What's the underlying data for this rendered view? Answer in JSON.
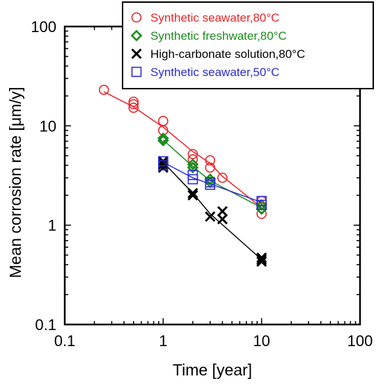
{
  "chart_data": {
    "type": "scatter",
    "xlabel": "Time [year]",
    "ylabel": "Mean corrosion rate [μm/y]",
    "x_scale": "log",
    "y_scale": "log",
    "xlim": [
      0.1,
      100
    ],
    "ylim": [
      0.1,
      100
    ],
    "x_ticks": [
      "0.1",
      "1",
      "10",
      "100"
    ],
    "y_ticks": [
      "0.1",
      "1",
      "10",
      "100"
    ],
    "grid": false,
    "legend_position": "top-right",
    "series": [
      {
        "name": "Synthetic seawater,80°C",
        "color": "#e8262a",
        "marker": "circle",
        "points": [
          [
            0.25,
            23
          ],
          [
            0.5,
            17.5
          ],
          [
            0.5,
            16.5
          ],
          [
            0.5,
            15.2
          ],
          [
            1,
            11.2
          ],
          [
            1,
            9.0
          ],
          [
            2,
            5.2
          ],
          [
            2,
            4.6
          ],
          [
            3,
            4.5
          ],
          [
            3,
            3.8
          ],
          [
            4,
            3.0
          ],
          [
            10,
            1.75
          ],
          [
            10,
            1.5
          ],
          [
            10,
            1.3
          ]
        ],
        "fit": [
          [
            0.25,
            22
          ],
          [
            0.5,
            15.5
          ],
          [
            1,
            9.7
          ],
          [
            2,
            5.5
          ],
          [
            3,
            4.2
          ],
          [
            4,
            3.1
          ],
          [
            10,
            1.5
          ]
        ]
      },
      {
        "name": "Synthetic freshwater,80°C",
        "color": "#1c8a1f",
        "marker": "diamond",
        "points": [
          [
            1,
            7.5
          ],
          [
            1,
            7.1
          ],
          [
            2,
            4.1
          ],
          [
            2,
            3.8
          ],
          [
            3,
            2.9
          ],
          [
            3,
            2.7
          ],
          [
            10,
            1.6
          ],
          [
            10,
            1.45
          ]
        ],
        "fit": [
          [
            1,
            7.2
          ],
          [
            2,
            3.9
          ],
          [
            3,
            2.8
          ],
          [
            10,
            1.5
          ]
        ]
      },
      {
        "name": "High-carbonate solution,80°C",
        "color": "#000000",
        "marker": "x",
        "points": [
          [
            1,
            4.4
          ],
          [
            1,
            4.1
          ],
          [
            1,
            3.8
          ],
          [
            2,
            2.1
          ],
          [
            2,
            2.0
          ],
          [
            3,
            1.22
          ],
          [
            4,
            1.38
          ],
          [
            4,
            1.15
          ],
          [
            10,
            0.47
          ],
          [
            10,
            0.45
          ],
          [
            10,
            0.43
          ]
        ],
        "fit": [
          [
            1,
            4.3
          ],
          [
            2,
            2.1
          ],
          [
            3,
            1.3
          ],
          [
            10,
            0.45
          ]
        ]
      },
      {
        "name": "Synthetic seawater,50°C",
        "color": "#2b2bd6",
        "marker": "square",
        "points": [
          [
            1,
            4.4
          ],
          [
            1,
            4.0
          ],
          [
            2,
            3.2
          ],
          [
            2,
            2.9
          ],
          [
            3,
            2.7
          ],
          [
            3,
            2.55
          ],
          [
            10,
            1.75
          ],
          [
            10,
            1.6
          ]
        ],
        "fit": [
          [
            1,
            4.3
          ],
          [
            2,
            3.0
          ],
          [
            3,
            2.6
          ],
          [
            10,
            1.7
          ]
        ]
      }
    ]
  }
}
